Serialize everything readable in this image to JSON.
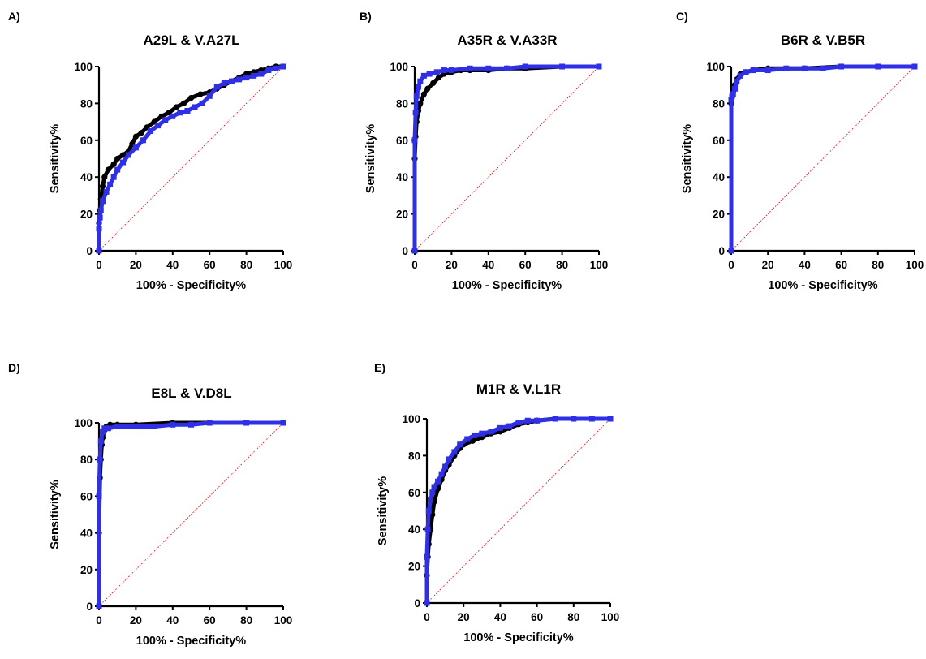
{
  "chart_data": [
    {
      "type": "line",
      "panel": "A)",
      "title": "A29L & V.A27L",
      "xlabel": "100% - Specificity%",
      "ylabel": "Sensitivity%",
      "xlim": [
        0,
        100
      ],
      "ylim": [
        0,
        100
      ],
      "xticks": [
        0,
        20,
        40,
        60,
        80,
        100
      ],
      "yticks": [
        0,
        20,
        40,
        60,
        80,
        100
      ],
      "reference_line": true,
      "series": [
        {
          "color": "#000000",
          "marker": "circle",
          "x": [
            0,
            0,
            0.5,
            1,
            2,
            3,
            5,
            8,
            10,
            13,
            16,
            18,
            20,
            23,
            26,
            30,
            34,
            38,
            42,
            46,
            50,
            55,
            60,
            64,
            68,
            72,
            76,
            80,
            84,
            88,
            92,
            96,
            100
          ],
          "y": [
            0,
            15,
            22,
            28,
            35,
            40,
            44,
            47,
            50,
            52,
            54,
            58,
            62,
            64,
            67,
            70,
            73,
            75,
            78,
            80,
            83,
            85,
            86,
            88,
            90,
            92,
            94,
            96,
            97,
            98,
            99,
            100,
            100
          ]
        },
        {
          "color": "#2f2fe6",
          "marker": "square",
          "x": [
            0,
            0,
            0.5,
            1,
            2,
            4,
            6,
            8,
            10,
            13,
            16,
            20,
            24,
            28,
            32,
            36,
            40,
            44,
            48,
            52,
            56,
            60,
            64,
            68,
            72,
            76,
            80,
            84,
            88,
            92,
            96,
            100
          ],
          "y": [
            0,
            12,
            18,
            22,
            27,
            32,
            36,
            40,
            44,
            48,
            52,
            56,
            60,
            65,
            68,
            71,
            73,
            75,
            76,
            78,
            80,
            84,
            89,
            91,
            92,
            93,
            94,
            95,
            96,
            98,
            99,
            100
          ]
        }
      ]
    },
    {
      "type": "line",
      "panel": "B)",
      "title": "A35R & V.A33R",
      "xlabel": "100% - Specificity%",
      "ylabel": "Sensitivity%",
      "xlim": [
        0,
        100
      ],
      "ylim": [
        0,
        100
      ],
      "xticks": [
        0,
        20,
        40,
        60,
        80,
        100
      ],
      "yticks": [
        0,
        20,
        40,
        60,
        80,
        100
      ],
      "reference_line": true,
      "series": [
        {
          "color": "#000000",
          "marker": "circle",
          "x": [
            0,
            0,
            0.5,
            1,
            2,
            3,
            5,
            7,
            10,
            13,
            16,
            20,
            25,
            30,
            40,
            50,
            60,
            80,
            100
          ],
          "y": [
            0,
            50,
            62,
            70,
            76,
            80,
            85,
            88,
            91,
            94,
            96,
            97,
            98,
            98,
            98,
            99,
            99,
            100,
            100
          ]
        },
        {
          "color": "#2f2fe6",
          "marker": "square",
          "x": [
            0,
            0,
            0.5,
            1,
            2,
            3,
            5,
            8,
            12,
            16,
            20,
            30,
            40,
            50,
            60,
            80,
            100
          ],
          "y": [
            0,
            60,
            75,
            84,
            89,
            92,
            95,
            96,
            97,
            98,
            98,
            99,
            99,
            99,
            100,
            100,
            100
          ]
        }
      ]
    },
    {
      "type": "line",
      "panel": "C)",
      "title": "B6R & V.B5R",
      "xlabel": "100% - Specificity%",
      "ylabel": "Sensitivity%",
      "xlim": [
        0,
        100
      ],
      "ylim": [
        0,
        100
      ],
      "xticks": [
        0,
        20,
        40,
        60,
        80,
        100
      ],
      "yticks": [
        0,
        20,
        40,
        60,
        80,
        100
      ],
      "reference_line": true,
      "series": [
        {
          "color": "#000000",
          "marker": "circle",
          "x": [
            0,
            0,
            0.5,
            1,
            2,
            3,
            5,
            8,
            12,
            20,
            30,
            40,
            60,
            80,
            100
          ],
          "y": [
            0,
            80,
            84,
            86,
            90,
            93,
            96,
            97,
            98,
            99,
            99,
            99,
            100,
            100,
            100
          ]
        },
        {
          "color": "#2f2fe6",
          "marker": "square",
          "x": [
            0,
            0,
            0.5,
            1,
            2,
            3,
            5,
            8,
            12,
            20,
            30,
            40,
            50,
            60,
            80,
            100
          ],
          "y": [
            0,
            82,
            84,
            85,
            88,
            92,
            95,
            97,
            98,
            98,
            99,
            99,
            99,
            100,
            100,
            100
          ]
        }
      ]
    },
    {
      "type": "line",
      "panel": "D)",
      "title": "E8L & V.D8L",
      "xlabel": "100% - Specificity%",
      "ylabel": "Sensitivity%",
      "xlim": [
        0,
        100
      ],
      "ylim": [
        0,
        100
      ],
      "xticks": [
        0,
        20,
        40,
        60,
        80,
        100
      ],
      "yticks": [
        0,
        20,
        40,
        60,
        80,
        100
      ],
      "reference_line": true,
      "series": [
        {
          "color": "#000000",
          "marker": "circle",
          "x": [
            0,
            0,
            0.5,
            1,
            1.5,
            2,
            3,
            4,
            6,
            10,
            20,
            40,
            60,
            80,
            100
          ],
          "y": [
            0,
            40,
            70,
            80,
            88,
            92,
            96,
            98,
            99,
            99,
            99,
            100,
            100,
            100,
            100
          ]
        },
        {
          "color": "#2f2fe6",
          "marker": "square",
          "x": [
            0,
            0,
            0.5,
            1,
            2,
            3,
            5,
            10,
            20,
            30,
            40,
            50,
            60,
            80,
            100
          ],
          "y": [
            0,
            60,
            80,
            90,
            95,
            97,
            97,
            98,
            98,
            98,
            99,
            99,
            100,
            100,
            100
          ]
        }
      ]
    },
    {
      "type": "line",
      "panel": "E)",
      "title": "M1R & V.L1R",
      "xlabel": "100% - Specificity%",
      "ylabel": "Sensitivity%",
      "xlim": [
        0,
        100
      ],
      "ylim": [
        0,
        100
      ],
      "xticks": [
        0,
        20,
        40,
        60,
        80,
        100
      ],
      "yticks": [
        0,
        20,
        40,
        60,
        80,
        100
      ],
      "reference_line": true,
      "series": [
        {
          "color": "#000000",
          "marker": "circle",
          "x": [
            0,
            0,
            0.5,
            1,
            2,
            3,
            4,
            6,
            8,
            10,
            12,
            15,
            18,
            20,
            25,
            30,
            35,
            40,
            45,
            50,
            55,
            60,
            70,
            80,
            90,
            100
          ],
          "y": [
            0,
            15,
            25,
            32,
            40,
            48,
            55,
            62,
            67,
            72,
            75,
            80,
            84,
            86,
            88,
            90,
            92,
            93,
            95,
            97,
            98,
            99,
            100,
            100,
            100,
            100
          ]
        },
        {
          "color": "#2f2fe6",
          "marker": "square",
          "x": [
            0,
            0,
            0.5,
            1,
            2,
            3,
            4,
            6,
            8,
            10,
            12,
            15,
            18,
            22,
            26,
            30,
            35,
            40,
            45,
            50,
            55,
            60,
            70,
            80,
            90,
            100
          ],
          "y": [
            0,
            25,
            40,
            50,
            56,
            60,
            63,
            66,
            70,
            74,
            78,
            82,
            86,
            89,
            91,
            92,
            93,
            95,
            96,
            98,
            99,
            99,
            100,
            100,
            100,
            100
          ]
        }
      ]
    }
  ]
}
